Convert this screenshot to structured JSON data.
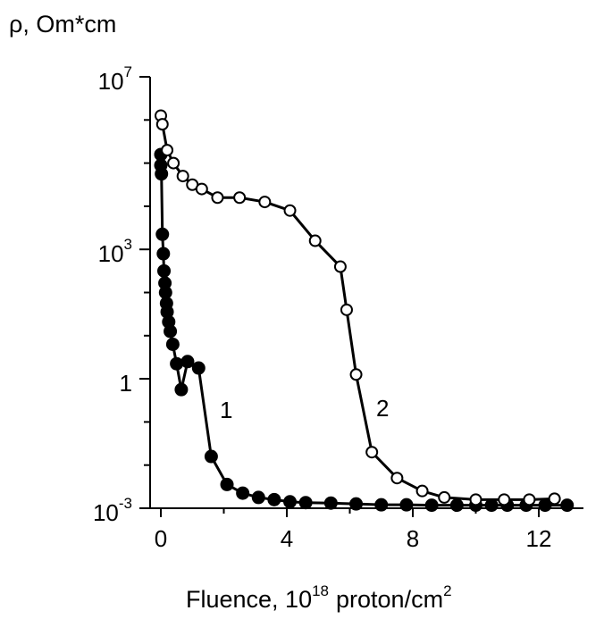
{
  "chart_data": {
    "type": "scatter",
    "title": "",
    "ylabel": "ρ, Om*cm",
    "xlabel": {
      "base": "Fluence, 10",
      "exp": "18",
      "unit": "proton/cm",
      "unit_exp": "2"
    },
    "xlim": [
      -0.5,
      13.5
    ],
    "ylim_log10": [
      -3,
      7
    ],
    "y_scale": "log",
    "grid": false,
    "x_ticks": [
      0,
      4,
      8,
      12
    ],
    "x_tick_labels": [
      "0",
      "4",
      "8",
      "12"
    ],
    "y_ticks": [
      {
        "value_log10": 7,
        "base": "10",
        "exp": "7"
      },
      {
        "value_log10": 3,
        "base": "10",
        "exp": "3"
      },
      {
        "value_log10": 0,
        "base": "1",
        "exp": ""
      },
      {
        "value_log10": -3,
        "base": "10",
        "exp": "-3"
      }
    ],
    "y_minor_ticks_log10": [
      6,
      5,
      4,
      2,
      1,
      -1,
      -2
    ],
    "series": [
      {
        "label": "1",
        "marker": "filled-circle",
        "x": [
          0.0,
          0.0,
          0.02,
          0.05,
          0.08,
          0.1,
          0.13,
          0.15,
          0.18,
          0.2,
          0.25,
          0.3,
          0.38,
          0.5,
          0.65,
          0.85,
          1.2,
          1.6,
          2.1,
          2.6,
          3.1,
          3.6,
          4.1,
          4.6,
          5.4,
          6.2,
          7.0,
          7.8,
          8.6,
          9.4,
          10.0,
          10.5,
          11.0,
          11.6,
          12.2,
          12.9
        ],
        "y_log10": [
          5.2,
          4.95,
          4.75,
          3.35,
          2.9,
          2.5,
          2.22,
          2.0,
          1.75,
          1.55,
          1.32,
          1.1,
          0.8,
          0.35,
          -0.25,
          0.4,
          0.25,
          -1.8,
          -2.45,
          -2.65,
          -2.75,
          -2.8,
          -2.85,
          -2.87,
          -2.88,
          -2.9,
          -2.92,
          -2.92,
          -2.93,
          -2.93,
          -2.93,
          -2.93,
          -2.93,
          -2.93,
          -2.93,
          -2.93
        ]
      },
      {
        "label": "2",
        "marker": "open-circle",
        "x": [
          0.0,
          0.05,
          0.2,
          0.4,
          0.7,
          1.0,
          1.3,
          1.8,
          2.5,
          3.3,
          4.1,
          4.9,
          5.7,
          5.9,
          6.2,
          6.7,
          7.5,
          8.3,
          9.0,
          10.0,
          10.9,
          11.7,
          12.5
        ],
        "y_log10": [
          6.1,
          5.9,
          5.3,
          5.0,
          4.7,
          4.5,
          4.4,
          4.2,
          4.2,
          4.1,
          3.9,
          3.2,
          2.6,
          1.6,
          0.1,
          -1.7,
          -2.3,
          -2.6,
          -2.75,
          -2.8,
          -2.8,
          -2.8,
          -2.78
        ]
      }
    ]
  }
}
